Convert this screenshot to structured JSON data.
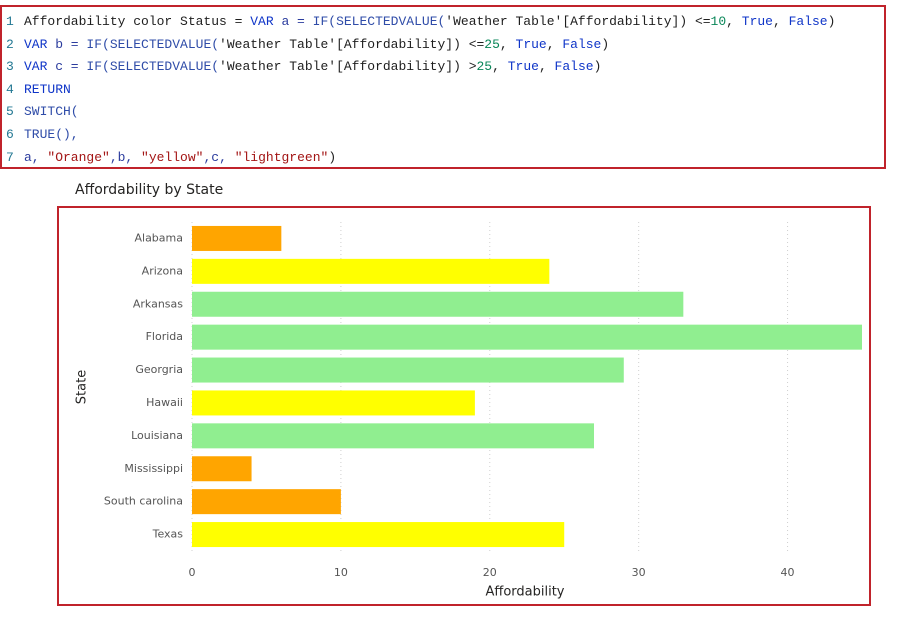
{
  "code": {
    "lines": [
      {
        "number": "1",
        "tokens": [
          {
            "text": "Affordability color Status = ",
            "color": "#1e1e1e"
          },
          {
            "text": "VAR",
            "color": "#0f35c8"
          },
          {
            "text": " a = ",
            "color": "#2b3c9e"
          },
          {
            "text": "IF(SELECTEDVALUE(",
            "color": "#2f4ca8"
          },
          {
            "text": "'Weather Table'[Affordability]) <=",
            "color": "#1e1e1e"
          },
          {
            "text": "10",
            "color": "#098658"
          },
          {
            "text": ", ",
            "color": "#1e1e1e"
          },
          {
            "text": "True",
            "color": "#0f35c8"
          },
          {
            "text": ", ",
            "color": "#1e1e1e"
          },
          {
            "text": "False",
            "color": "#0f35c8"
          },
          {
            "text": ")",
            "color": "#1e1e1e"
          }
        ]
      },
      {
        "number": "2",
        "tokens": [
          {
            "text": "VAR",
            "color": "#0f35c8"
          },
          {
            "text": " b = ",
            "color": "#2b3c9e"
          },
          {
            "text": "IF(SELECTEDVALUE(",
            "color": "#2f4ca8"
          },
          {
            "text": "'Weather Table'[Affordability]) <=",
            "color": "#1e1e1e"
          },
          {
            "text": "25",
            "color": "#098658"
          },
          {
            "text": ", ",
            "color": "#1e1e1e"
          },
          {
            "text": "True",
            "color": "#0f35c8"
          },
          {
            "text": ", ",
            "color": "#1e1e1e"
          },
          {
            "text": "False",
            "color": "#0f35c8"
          },
          {
            "text": ")",
            "color": "#1e1e1e"
          }
        ]
      },
      {
        "number": "3",
        "tokens": [
          {
            "text": "VAR",
            "color": "#0f35c8"
          },
          {
            "text": " c = ",
            "color": "#2b3c9e"
          },
          {
            "text": "IF(SELECTEDVALUE(",
            "color": "#2f4ca8"
          },
          {
            "text": "'Weather Table'[Affordability]) >",
            "color": "#1e1e1e"
          },
          {
            "text": "25",
            "color": "#098658"
          },
          {
            "text": ", ",
            "color": "#1e1e1e"
          },
          {
            "text": "True",
            "color": "#0f35c8"
          },
          {
            "text": ", ",
            "color": "#1e1e1e"
          },
          {
            "text": "False",
            "color": "#0f35c8"
          },
          {
            "text": ")",
            "color": "#1e1e1e"
          }
        ]
      },
      {
        "number": "4",
        "tokens": [
          {
            "text": "RETURN",
            "color": "#0f35c8"
          }
        ]
      },
      {
        "number": "5",
        "tokens": [
          {
            "text": "SWITCH(",
            "color": "#2f4ca8"
          }
        ]
      },
      {
        "number": "6",
        "tokens": [
          {
            "text": "TRUE(),",
            "color": "#2f4ca8"
          }
        ]
      },
      {
        "number": "7",
        "tokens": [
          {
            "text": "a, ",
            "color": "#2b3c9e"
          },
          {
            "text": "\"Orange\"",
            "color": "#a31515"
          },
          {
            "text": ",b, ",
            "color": "#2b3c9e"
          },
          {
            "text": "\"yellow\"",
            "color": "#a31515"
          },
          {
            "text": ",c, ",
            "color": "#2b3c9e"
          },
          {
            "text": "\"lightgreen\"",
            "color": "#a31515"
          },
          {
            "text": ")",
            "color": "#1e1e1e"
          }
        ]
      }
    ]
  },
  "chart_data": {
    "type": "bar",
    "orientation": "horizontal",
    "title": "Affordability by State",
    "x_label": "Affordability",
    "y_label": "State",
    "categories": [
      "Alabama",
      "Arizona",
      "Arkansas",
      "Florida",
      "Georgria",
      "Hawaii",
      "Louisiana",
      "Mississippi",
      "South carolina",
      "Texas"
    ],
    "values": [
      6,
      24,
      33,
      45,
      29,
      19,
      27,
      4,
      10,
      25
    ],
    "colors": [
      "#ffa500",
      "#ffff00",
      "#90ee90",
      "#90ee90",
      "#90ee90",
      "#ffff00",
      "#90ee90",
      "#ffa500",
      "#ffa500",
      "#ffff00"
    ],
    "xlim": [
      0,
      45
    ],
    "xticks": [
      0,
      10,
      20,
      30,
      40
    ],
    "grid": true
  }
}
